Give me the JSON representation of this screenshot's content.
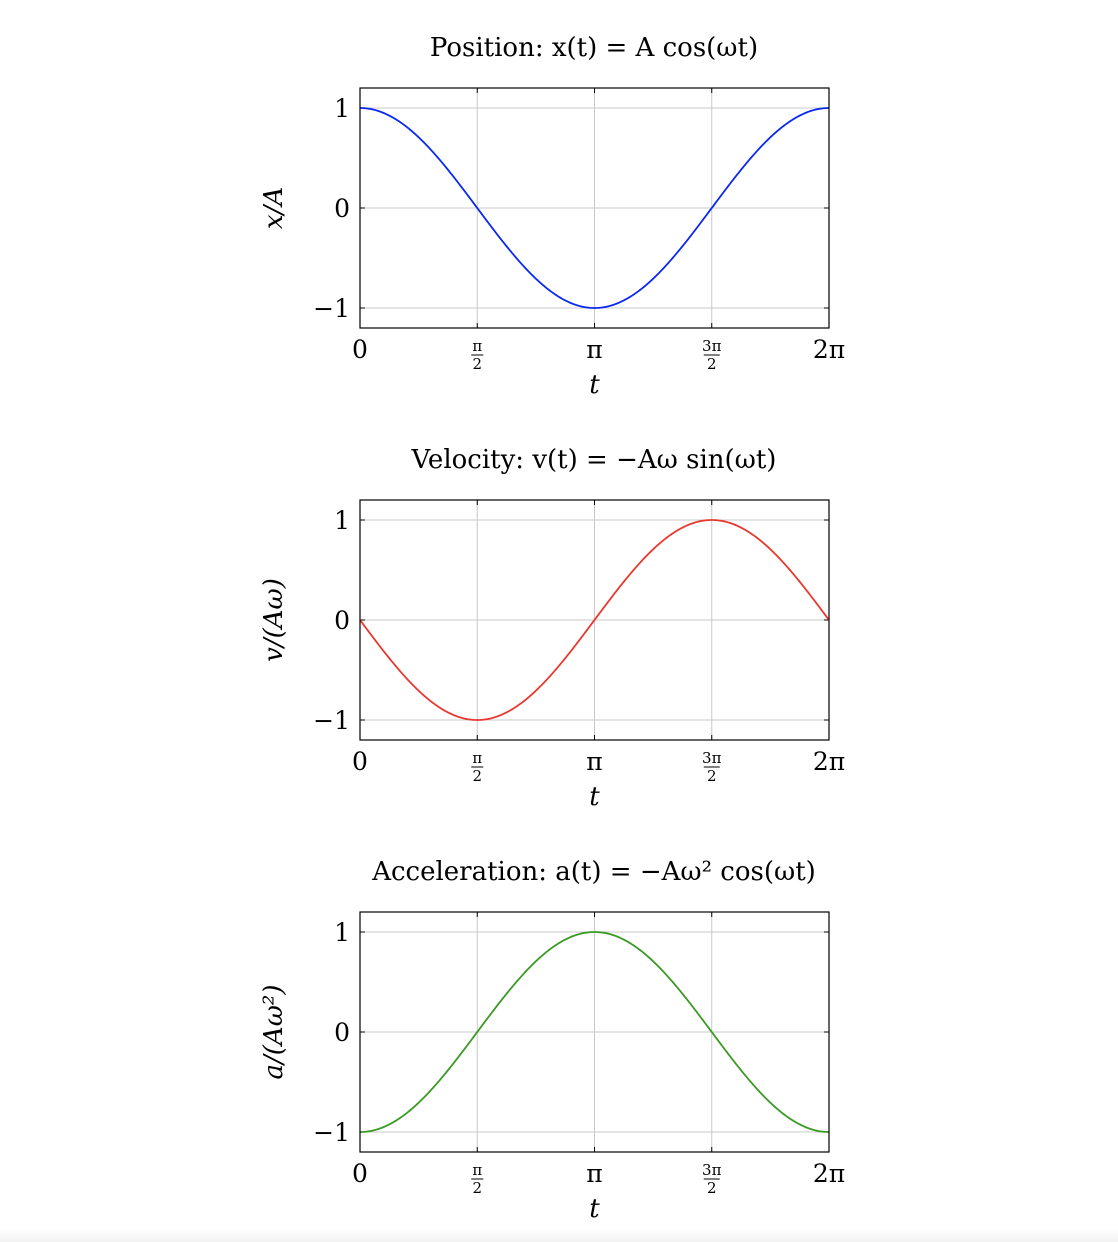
{
  "chart_data": [
    {
      "type": "line",
      "title": "Position:  x(t) = A cos(ωt)",
      "xlabel": "t",
      "ylabel": "x/A",
      "xlim": [
        0,
        6.283185307
      ],
      "ylim": [
        -1.2,
        1.2
      ],
      "x_ticks": [
        0,
        1.5707963,
        3.1415927,
        4.712389,
        6.2831853
      ],
      "x_tick_labels": [
        "0",
        "π/2",
        "π",
        "3π/2",
        "2π"
      ],
      "y_ticks": [
        -1,
        0,
        1
      ],
      "y_tick_labels": [
        "−1",
        "0",
        "1"
      ],
      "grid": true,
      "series": [
        {
          "function": "cos",
          "color": "#0a29f0",
          "x": [
            0,
            0.7854,
            1.5708,
            2.3562,
            3.1416,
            3.927,
            4.7124,
            5.4978,
            6.2832
          ],
          "y": [
            1,
            0.7071,
            0,
            -0.7071,
            -1,
            -0.7071,
            0,
            0.7071,
            1
          ]
        }
      ]
    },
    {
      "type": "line",
      "title": "Velocity:  v(t) = −Aω sin(ωt)",
      "xlabel": "t",
      "ylabel": "v/(Aω)",
      "xlim": [
        0,
        6.283185307
      ],
      "ylim": [
        -1.2,
        1.2
      ],
      "x_ticks": [
        0,
        1.5707963,
        3.1415927,
        4.712389,
        6.2831853
      ],
      "x_tick_labels": [
        "0",
        "π/2",
        "π",
        "3π/2",
        "2π"
      ],
      "y_ticks": [
        -1,
        0,
        1
      ],
      "y_tick_labels": [
        "−1",
        "0",
        "1"
      ],
      "grid": true,
      "series": [
        {
          "function": "-sin",
          "color": "#e8392e",
          "x": [
            0,
            0.7854,
            1.5708,
            2.3562,
            3.1416,
            3.927,
            4.7124,
            5.4978,
            6.2832
          ],
          "y": [
            0,
            -0.7071,
            -1,
            -0.7071,
            0,
            0.7071,
            1,
            0.7071,
            0
          ]
        }
      ]
    },
    {
      "type": "line",
      "title": "Acceleration:  a(t) = −Aω² cos(ωt)",
      "xlabel": "t",
      "ylabel": "a/(Aω²)",
      "xlim": [
        0,
        6.283185307
      ],
      "ylim": [
        -1.2,
        1.2
      ],
      "x_ticks": [
        0,
        1.5707963,
        3.1415927,
        4.712389,
        6.2831853
      ],
      "x_tick_labels": [
        "0",
        "π/2",
        "π",
        "3π/2",
        "2π"
      ],
      "y_ticks": [
        -1,
        0,
        1
      ],
      "y_tick_labels": [
        "−1",
        "0",
        "1"
      ],
      "grid": true,
      "series": [
        {
          "function": "-cos",
          "color": "#3b9a24",
          "x": [
            0,
            0.7854,
            1.5708,
            2.3562,
            3.1416,
            3.927,
            4.7124,
            5.4978,
            6.2832
          ],
          "y": [
            -1,
            -0.7071,
            0,
            0.7071,
            1,
            0.7071,
            0,
            -0.7071,
            -1
          ]
        }
      ]
    }
  ],
  "colors": {
    "grid": "#c8c8c8",
    "axis": "#000000"
  }
}
